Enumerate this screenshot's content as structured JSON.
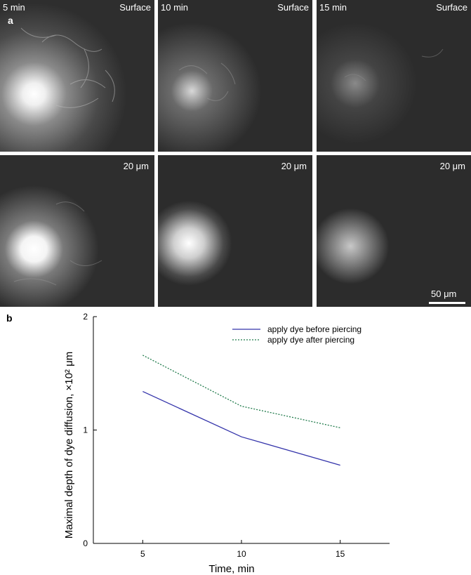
{
  "panel_a": {
    "letter": "a",
    "tiles": [
      {
        "time": "5 min",
        "depth": "Surface"
      },
      {
        "time": "10 min",
        "depth": "Surface"
      },
      {
        "time": "15 min",
        "depth": "Surface"
      },
      {
        "time": "",
        "depth": "20 μm"
      },
      {
        "time": "",
        "depth": "20 μm"
      },
      {
        "time": "",
        "depth": "20 μm"
      }
    ],
    "scale_label": "50 μm"
  },
  "panel_b": {
    "letter": "b"
  },
  "chart_data": {
    "type": "line",
    "title": "",
    "xlabel": "Time, min",
    "ylabel": "Maximal depth of dye diffusion, ×10² μm",
    "x": [
      5,
      10,
      15
    ],
    "xticks": [
      5,
      10,
      15
    ],
    "yticks": [
      0,
      1,
      2
    ],
    "xlim": [
      2.5,
      17.5
    ],
    "ylim": [
      0,
      2
    ],
    "grid": false,
    "legend_position": "top-right",
    "series": [
      {
        "name": "apply dye before piercing",
        "values": [
          1.34,
          0.94,
          0.69
        ],
        "color": "#3333aa",
        "style": "solid"
      },
      {
        "name": "apply dye after piercing",
        "values": [
          1.66,
          1.21,
          1.02
        ],
        "color": "#1f7a4a",
        "style": "dotted"
      }
    ]
  }
}
